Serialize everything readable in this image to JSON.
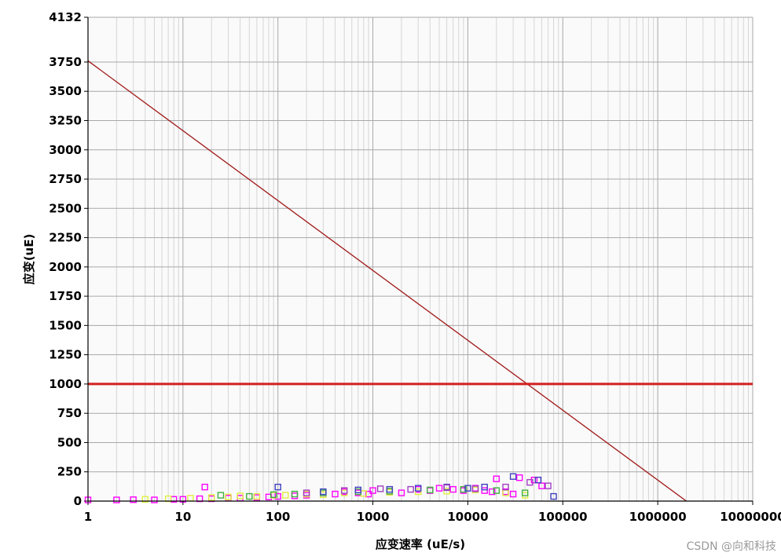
{
  "chart_data": {
    "type": "scatter",
    "title": "",
    "xlabel": "应变速率 (uE/s)",
    "ylabel": "应变(uE)",
    "x_scale": "log",
    "xlim": [
      1,
      10000000
    ],
    "ylim": [
      0,
      4132
    ],
    "x_ticks": [
      "1",
      "10",
      "100",
      "1000",
      "10000",
      "100000",
      "1000000",
      "10000000"
    ],
    "y_ticks": [
      "0",
      "250",
      "500",
      "750",
      "1000",
      "1250",
      "1500",
      "1750",
      "2000",
      "2250",
      "2500",
      "2750",
      "3000",
      "3250",
      "3500",
      "3750",
      "4132"
    ],
    "grid": true,
    "lines": [
      {
        "name": "",
        "color": "#a01818",
        "x": [
          1,
          2000000
        ],
        "y": [
          3760,
          0
        ]
      },
      {
        "name": "",
        "color": "#d42020",
        "x": [
          1,
          10000000
        ],
        "y": [
          1000,
          1000
        ]
      }
    ],
    "series": [
      {
        "name": "",
        "color": "#ff00ff",
        "x": [
          1,
          2,
          3,
          5,
          8,
          10,
          15,
          17,
          20,
          30,
          40,
          60,
          80,
          100,
          150,
          200,
          300,
          400,
          500,
          700,
          900,
          1000,
          1500,
          2000,
          3000,
          4000,
          5000,
          7000,
          9000,
          12000,
          15000,
          18000,
          20000,
          25000,
          30000,
          35000,
          50000,
          60000
        ],
        "y": [
          10,
          10,
          12,
          10,
          15,
          15,
          20,
          120,
          20,
          25,
          25,
          30,
          35,
          40,
          45,
          50,
          55,
          60,
          80,
          70,
          60,
          90,
          80,
          70,
          100,
          90,
          110,
          100,
          90,
          110,
          90,
          80,
          190,
          80,
          60,
          200,
          180,
          130
        ]
      },
      {
        "name": "",
        "color": "#e0f040",
        "x": [
          4,
          7,
          12,
          20,
          30,
          40,
          60,
          90,
          120,
          200,
          300,
          500,
          800,
          1500,
          3000,
          6000,
          12000,
          25000,
          40000
        ],
        "y": [
          15,
          20,
          25,
          30,
          35,
          45,
          40,
          50,
          50,
          60,
          55,
          70,
          65,
          75,
          80,
          85,
          95,
          70,
          50
        ]
      },
      {
        "name": "",
        "color": "#40b040",
        "x": [
          25,
          50,
          90,
          150,
          300,
          700,
          1500,
          4000,
          9000,
          20000,
          40000
        ],
        "y": [
          50,
          40,
          55,
          60,
          70,
          80,
          85,
          95,
          100,
          90,
          70
        ]
      },
      {
        "name": "",
        "color": "#4040c0",
        "x": [
          100,
          300,
          700,
          1500,
          3000,
          6000,
          10000,
          15000,
          30000,
          55000,
          80000
        ],
        "y": [
          120,
          80,
          95,
          100,
          110,
          120,
          110,
          120,
          210,
          180,
          40
        ]
      },
      {
        "name": "",
        "color": "#a040c0",
        "x": [
          200,
          500,
          1200,
          2500,
          6000,
          12000,
          25000,
          45000,
          70000
        ],
        "y": [
          70,
          90,
          105,
          100,
          115,
          105,
          120,
          160,
          130
        ]
      }
    ]
  },
  "watermark": "CSDN @向和科技"
}
